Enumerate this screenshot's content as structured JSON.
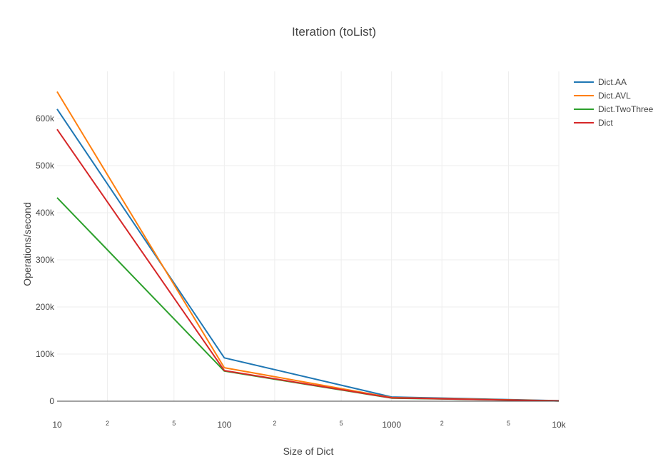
{
  "chart_data": {
    "type": "line",
    "title": "Iteration (toList)",
    "xlabel": "Size of Dict",
    "ylabel": "Operations/second",
    "x_scale": "log",
    "x": [
      10,
      100,
      1000,
      10000
    ],
    "xlim": [
      10,
      10000
    ],
    "ylim": [
      0,
      700000
    ],
    "x_major_ticks": [
      {
        "value": 10,
        "label": "10"
      },
      {
        "value": 100,
        "label": "100"
      },
      {
        "value": 1000,
        "label": "1000"
      },
      {
        "value": 10000,
        "label": "10k"
      }
    ],
    "x_minor_ticks": [
      {
        "value": 20,
        "label": "2"
      },
      {
        "value": 50,
        "label": "5"
      },
      {
        "value": 200,
        "label": "2"
      },
      {
        "value": 500,
        "label": "5"
      },
      {
        "value": 2000,
        "label": "2"
      },
      {
        "value": 5000,
        "label": "5"
      }
    ],
    "y_ticks": [
      {
        "value": 0,
        "label": "0"
      },
      {
        "value": 100000,
        "label": "100k"
      },
      {
        "value": 200000,
        "label": "200k"
      },
      {
        "value": 300000,
        "label": "300k"
      },
      {
        "value": 400000,
        "label": "400k"
      },
      {
        "value": 500000,
        "label": "500k"
      },
      {
        "value": 600000,
        "label": "600k"
      }
    ],
    "grid": true,
    "legend_position": "top-right",
    "series": [
      {
        "name": "Dict.AA",
        "color": "#1f77b4",
        "values": [
          620000,
          92000,
          9000,
          1000
        ]
      },
      {
        "name": "Dict.AVL",
        "color": "#ff7f0e",
        "values": [
          657000,
          71000,
          7500,
          700
        ]
      },
      {
        "name": "Dict.TwoThree",
        "color": "#2ca02c",
        "values": [
          432000,
          64000,
          6500,
          600
        ]
      },
      {
        "name": "Dict",
        "color": "#d62728",
        "values": [
          577000,
          65000,
          7000,
          650
        ]
      }
    ]
  }
}
